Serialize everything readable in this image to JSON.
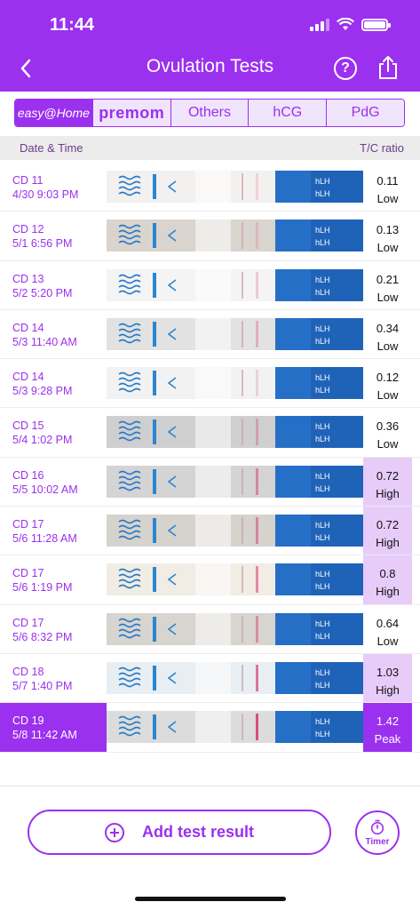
{
  "status_bar": {
    "time": "11:44"
  },
  "header": {
    "title": "Ovulation Tests",
    "help_label": "?"
  },
  "brand_tabs": [
    {
      "label": "easy@Home",
      "active": true
    },
    {
      "label": "premom",
      "active": false
    },
    {
      "label": "Others",
      "active": false
    },
    {
      "label": "hCG",
      "active": false
    },
    {
      "label": "PdG",
      "active": false
    }
  ],
  "columns": {
    "date": "Date & Time",
    "ratio": "T/C ratio"
  },
  "strip_label": "hLH",
  "tests": [
    {
      "cd": "CD 11",
      "datetime": "4/30 9:03 PM",
      "ratio": "0.11",
      "level": "Low",
      "tline": 0.11,
      "tone": "#f3f1ef"
    },
    {
      "cd": "CD 12",
      "datetime": "5/1 6:56 PM",
      "ratio": "0.13",
      "level": "Low",
      "tline": 0.13,
      "tone": "#d9d4cd"
    },
    {
      "cd": "CD 13",
      "datetime": "5/2 5:20 PM",
      "ratio": "0.21",
      "level": "Low",
      "tline": 0.21,
      "tone": "#f4f4f4"
    },
    {
      "cd": "CD 14",
      "datetime": "5/3 11:40 AM",
      "ratio": "0.34",
      "level": "Low",
      "tline": 0.34,
      "tone": "#e2e2e2"
    },
    {
      "cd": "CD 14",
      "datetime": "5/3 9:28 PM",
      "ratio": "0.12",
      "level": "Low",
      "tline": 0.12,
      "tone": "#f2f2f2"
    },
    {
      "cd": "CD 15",
      "datetime": "5/4 1:02 PM",
      "ratio": "0.36",
      "level": "Low",
      "tline": 0.36,
      "tone": "#cfcfcf"
    },
    {
      "cd": "CD 16",
      "datetime": "5/5 10:02 AM",
      "ratio": "0.72",
      "level": "High",
      "tline": 0.72,
      "tone": "#d4d4d4"
    },
    {
      "cd": "CD 17",
      "datetime": "5/6 11:28 AM",
      "ratio": "0.72",
      "level": "High",
      "tline": 0.72,
      "tone": "#d6d2cc"
    },
    {
      "cd": "CD 17",
      "datetime": "5/6 1:19 PM",
      "ratio": "0.8",
      "level": "High",
      "tline": 0.8,
      "tone": "#f1ece4"
    },
    {
      "cd": "CD 17",
      "datetime": "5/6 8:32 PM",
      "ratio": "0.64",
      "level": "Low",
      "tline": 0.64,
      "tone": "#d8d4cf"
    },
    {
      "cd": "CD 18",
      "datetime": "5/7 1:40 PM",
      "ratio": "1.03",
      "level": "High",
      "tline": 1.03,
      "tone": "#e8eef2"
    },
    {
      "cd": "CD 19",
      "datetime": "5/8 11:42 AM",
      "ratio": "1.42",
      "level": "Peak",
      "tline": 1.42,
      "tone": "#dcdcdc",
      "selected": true
    }
  ],
  "actions": {
    "add_label": "Add test result",
    "timer_label": "Timer"
  },
  "colors": {
    "accent": "#9b30ef",
    "high_bg": "#e7ccfa",
    "strip_blue": "#1f63b8"
  }
}
